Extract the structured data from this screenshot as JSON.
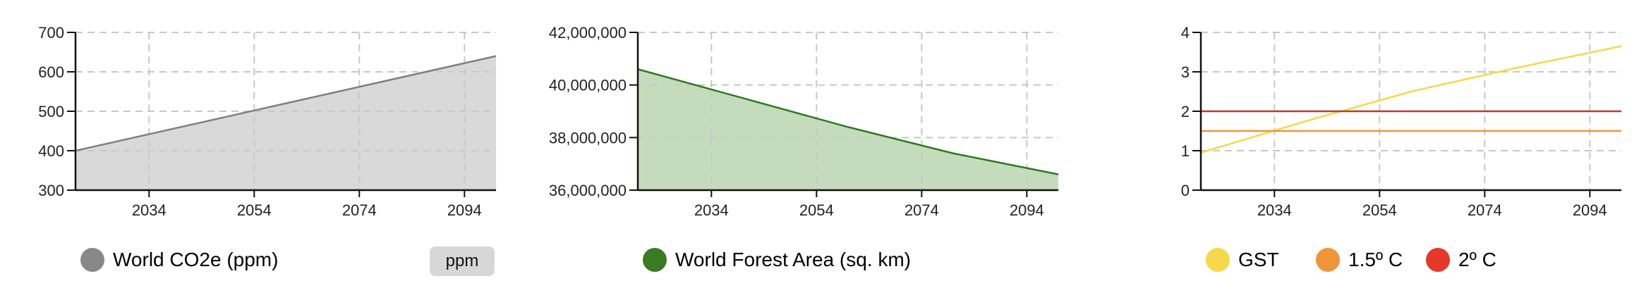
{
  "charts": [
    {
      "id": "co2",
      "legend": [
        {
          "label": "World CO2e (ppm)",
          "color": "#888888"
        }
      ],
      "unit_button": "ppm"
    },
    {
      "id": "forest",
      "legend": [
        {
          "label": "World Forest Area (sq. km)",
          "color": "#3a7a22"
        }
      ]
    },
    {
      "id": "temp",
      "legend": [
        {
          "label": "GST",
          "color": "#f5d94a"
        },
        {
          "label": "1.5º C",
          "color": "#ef953a"
        },
        {
          "label": "2º C",
          "color": "#e5382a"
        }
      ]
    }
  ],
  "chart_data": [
    {
      "type": "area",
      "x": [
        2020,
        2100
      ],
      "xticks": [
        2034,
        2054,
        2074,
        2094
      ],
      "xlim": [
        2020,
        2100
      ],
      "ylim": [
        300,
        700
      ],
      "yticks": [
        300,
        400,
        500,
        600,
        700
      ],
      "ytick_labels": [
        "300",
        "400",
        "500",
        "600",
        "700"
      ],
      "grid": true,
      "series": [
        {
          "name": "World CO2e (ppm)",
          "x": [
            2020,
            2100
          ],
          "values": [
            400,
            640
          ],
          "color": "#7f7f7f",
          "fill": "#d9d9d9"
        }
      ]
    },
    {
      "type": "area",
      "xticks": [
        2034,
        2054,
        2074,
        2094
      ],
      "xlim": [
        2020,
        2100
      ],
      "ylim": [
        36000000,
        42000000
      ],
      "yticks": [
        36000000,
        38000000,
        40000000,
        42000000
      ],
      "ytick_labels": [
        "36,000,000",
        "38,000,000",
        "40,000,000",
        "42,000,000"
      ],
      "grid": true,
      "series": [
        {
          "name": "World Forest Area (sq. km)",
          "x": [
            2020,
            2040,
            2060,
            2080,
            2100
          ],
          "values": [
            40600000,
            39500000,
            38400000,
            37400000,
            36600000
          ],
          "color": "#2f7a1f",
          "fill": "#c5dcbc"
        }
      ]
    },
    {
      "type": "line",
      "xticks": [
        2034,
        2054,
        2074,
        2094
      ],
      "xlim": [
        2020,
        2100
      ],
      "ylim": [
        0,
        4
      ],
      "yticks": [
        0,
        1,
        2,
        3,
        4
      ],
      "ytick_labels": [
        "0",
        "1",
        "2",
        "3",
        "4"
      ],
      "grid": true,
      "series": [
        {
          "name": "GST",
          "x": [
            2020,
            2040,
            2060,
            2080,
            2100
          ],
          "values": [
            0.95,
            1.75,
            2.5,
            3.1,
            3.65
          ],
          "color": "#f5d94a"
        },
        {
          "name": "1.5º C",
          "x": [
            2020,
            2100
          ],
          "values": [
            1.5,
            1.5
          ],
          "color": "#ef953a"
        },
        {
          "name": "2º C",
          "x": [
            2020,
            2100
          ],
          "values": [
            2,
            2
          ],
          "color": "#c0392b"
        }
      ]
    }
  ]
}
